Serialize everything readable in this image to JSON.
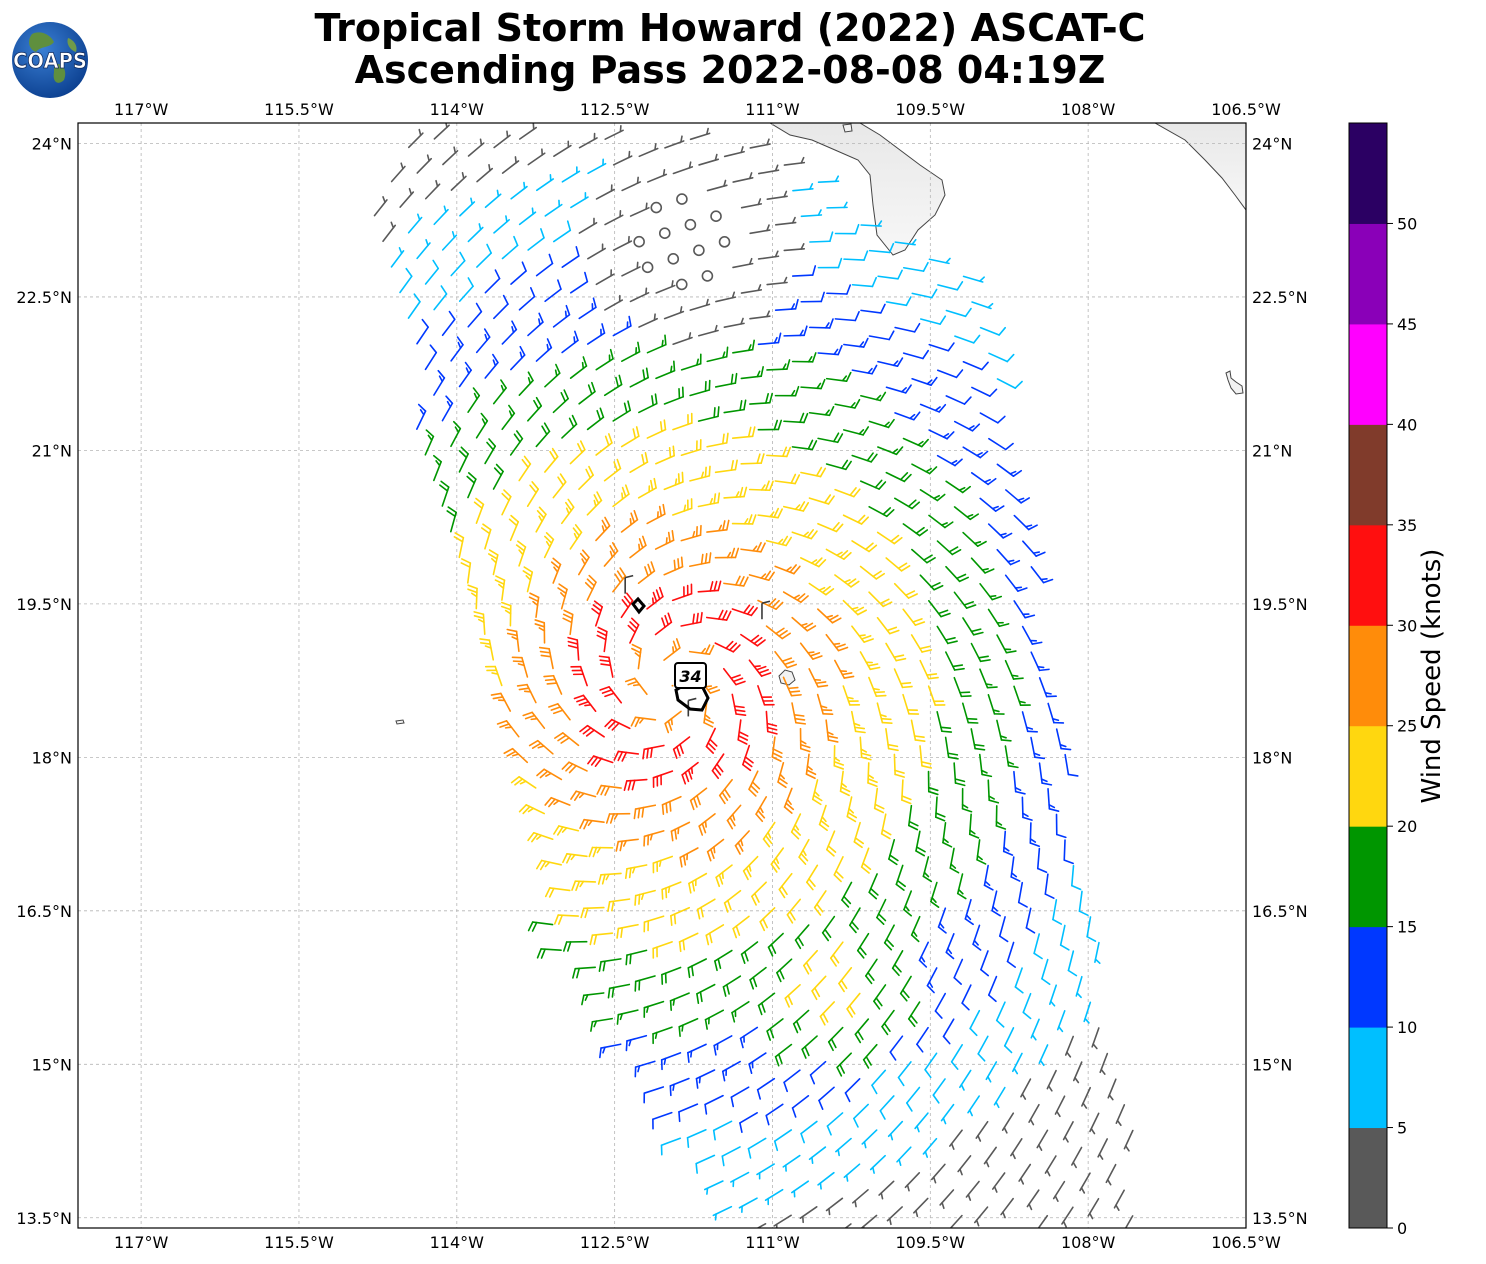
{
  "header": {
    "title_line_1": "Tropical Storm Howard (2022) ASCAT-C",
    "title_line_2": "Ascending Pass 2022-08-08 04:19Z",
    "logo_text": "COAPS"
  },
  "map": {
    "projection": "plate-carree",
    "lon_range": [
      -117.6,
      -106.5
    ],
    "lat_range": [
      13.4,
      24.2
    ],
    "lon_ticks": [
      {
        "value": -117.0,
        "label": "117°W"
      },
      {
        "value": -115.5,
        "label": "115.5°W"
      },
      {
        "value": -114.0,
        "label": "114°W"
      },
      {
        "value": -112.5,
        "label": "112.5°W"
      },
      {
        "value": -111.0,
        "label": "111°W"
      },
      {
        "value": -109.5,
        "label": "109.5°W"
      },
      {
        "value": -108.0,
        "label": "108°W"
      },
      {
        "value": -106.5,
        "label": "106.5°W"
      }
    ],
    "lat_ticks": [
      {
        "value": 24.0,
        "label": "24°N"
      },
      {
        "value": 22.5,
        "label": "22.5°N"
      },
      {
        "value": 21.0,
        "label": "21°N"
      },
      {
        "value": 19.5,
        "label": "19.5°N"
      },
      {
        "value": 18.0,
        "label": "18°N"
      },
      {
        "value": 16.5,
        "label": "16.5°N"
      },
      {
        "value": 15.0,
        "label": "15°N"
      },
      {
        "value": 13.5,
        "label": "13.5°N"
      }
    ],
    "gridlines": true,
    "storm_center": {
      "lon": -111.95,
      "lat": 18.7,
      "label": "34"
    },
    "calm_circle_color": "#3a3a3a",
    "land_color": "#f2f2f2",
    "coast_color": "#444444"
  },
  "colorbar": {
    "label": "Wind Speed (knots)",
    "bins": [
      {
        "min": 0,
        "max": 5,
        "color": "#595959"
      },
      {
        "min": 5,
        "max": 10,
        "color": "#00bfff"
      },
      {
        "min": 10,
        "max": 15,
        "color": "#0038ff"
      },
      {
        "min": 15,
        "max": 20,
        "color": "#009600"
      },
      {
        "min": 20,
        "max": 25,
        "color": "#ffd70f"
      },
      {
        "min": 25,
        "max": 30,
        "color": "#ff8c0a"
      },
      {
        "min": 30,
        "max": 35,
        "color": "#ff0f0f"
      },
      {
        "min": 35,
        "max": 40,
        "color": "#803b2b"
      },
      {
        "min": 40,
        "max": 45,
        "color": "#ff00ff"
      },
      {
        "min": 45,
        "max": 50,
        "color": "#8a00b8"
      },
      {
        "min": 50,
        "max": 55,
        "color": "#2b0063"
      }
    ],
    "ticks": [
      "0",
      "5",
      "10",
      "15",
      "20",
      "25",
      "30",
      "35",
      "40",
      "45",
      "50"
    ]
  }
}
